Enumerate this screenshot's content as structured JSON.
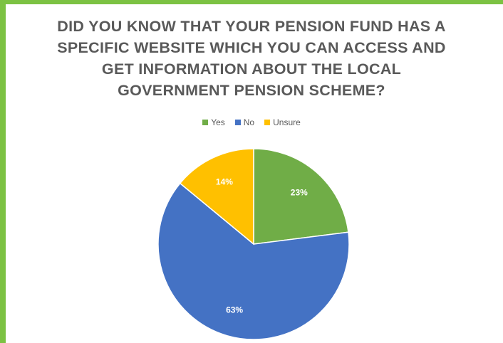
{
  "chart_data": {
    "type": "pie",
    "title": "DID YOU KNOW THAT YOUR PENSION FUND HAS A SPECIFIC WEBSITE WHICH YOU CAN ACCESS AND GET INFORMATION ABOUT THE LOCAL GOVERNMENT PENSION SCHEME?",
    "categories": [
      "Yes",
      "No",
      "Unsure"
    ],
    "values": [
      23,
      63,
      14
    ],
    "value_labels": [
      "23%",
      "63%",
      "14%"
    ],
    "colors": [
      "#70ad47",
      "#4472c4",
      "#ffc000"
    ],
    "legend_placement": "top"
  },
  "title_lines": [
    "DID YOU KNOW THAT YOUR PENSION FUND HAS A",
    "SPECIFIC WEBSITE WHICH YOU CAN ACCESS AND",
    "GET INFORMATION ABOUT THE LOCAL",
    "GOVERNMENT PENSION SCHEME?"
  ],
  "border_color": "#7cc243"
}
